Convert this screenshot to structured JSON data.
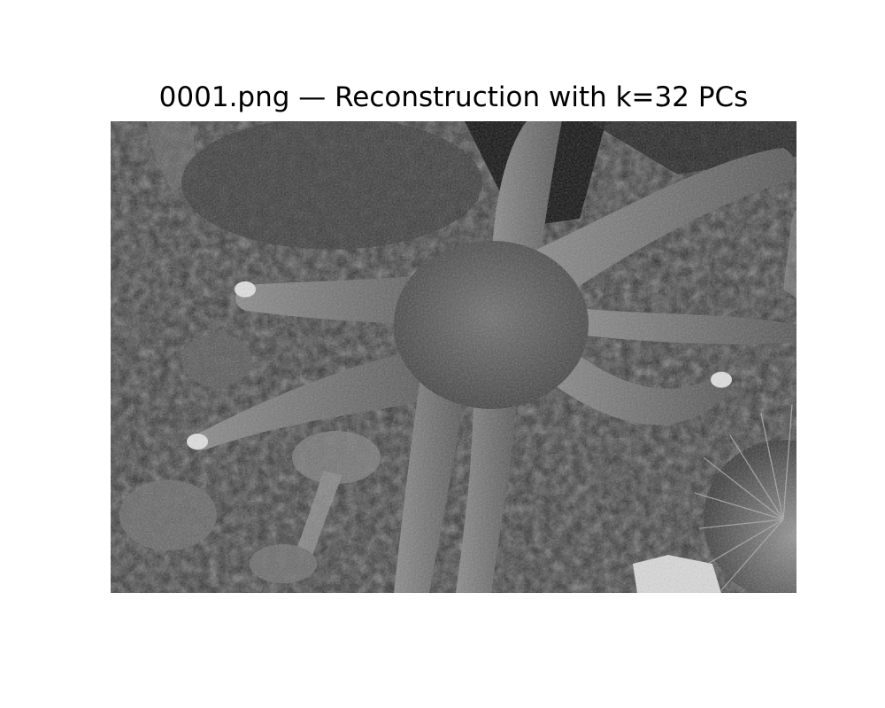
{
  "figure": {
    "title": "0001.png — Reconstruction with k=32 PCs"
  },
  "image": {
    "subject": "starfish",
    "colormap": "grayscale"
  }
}
